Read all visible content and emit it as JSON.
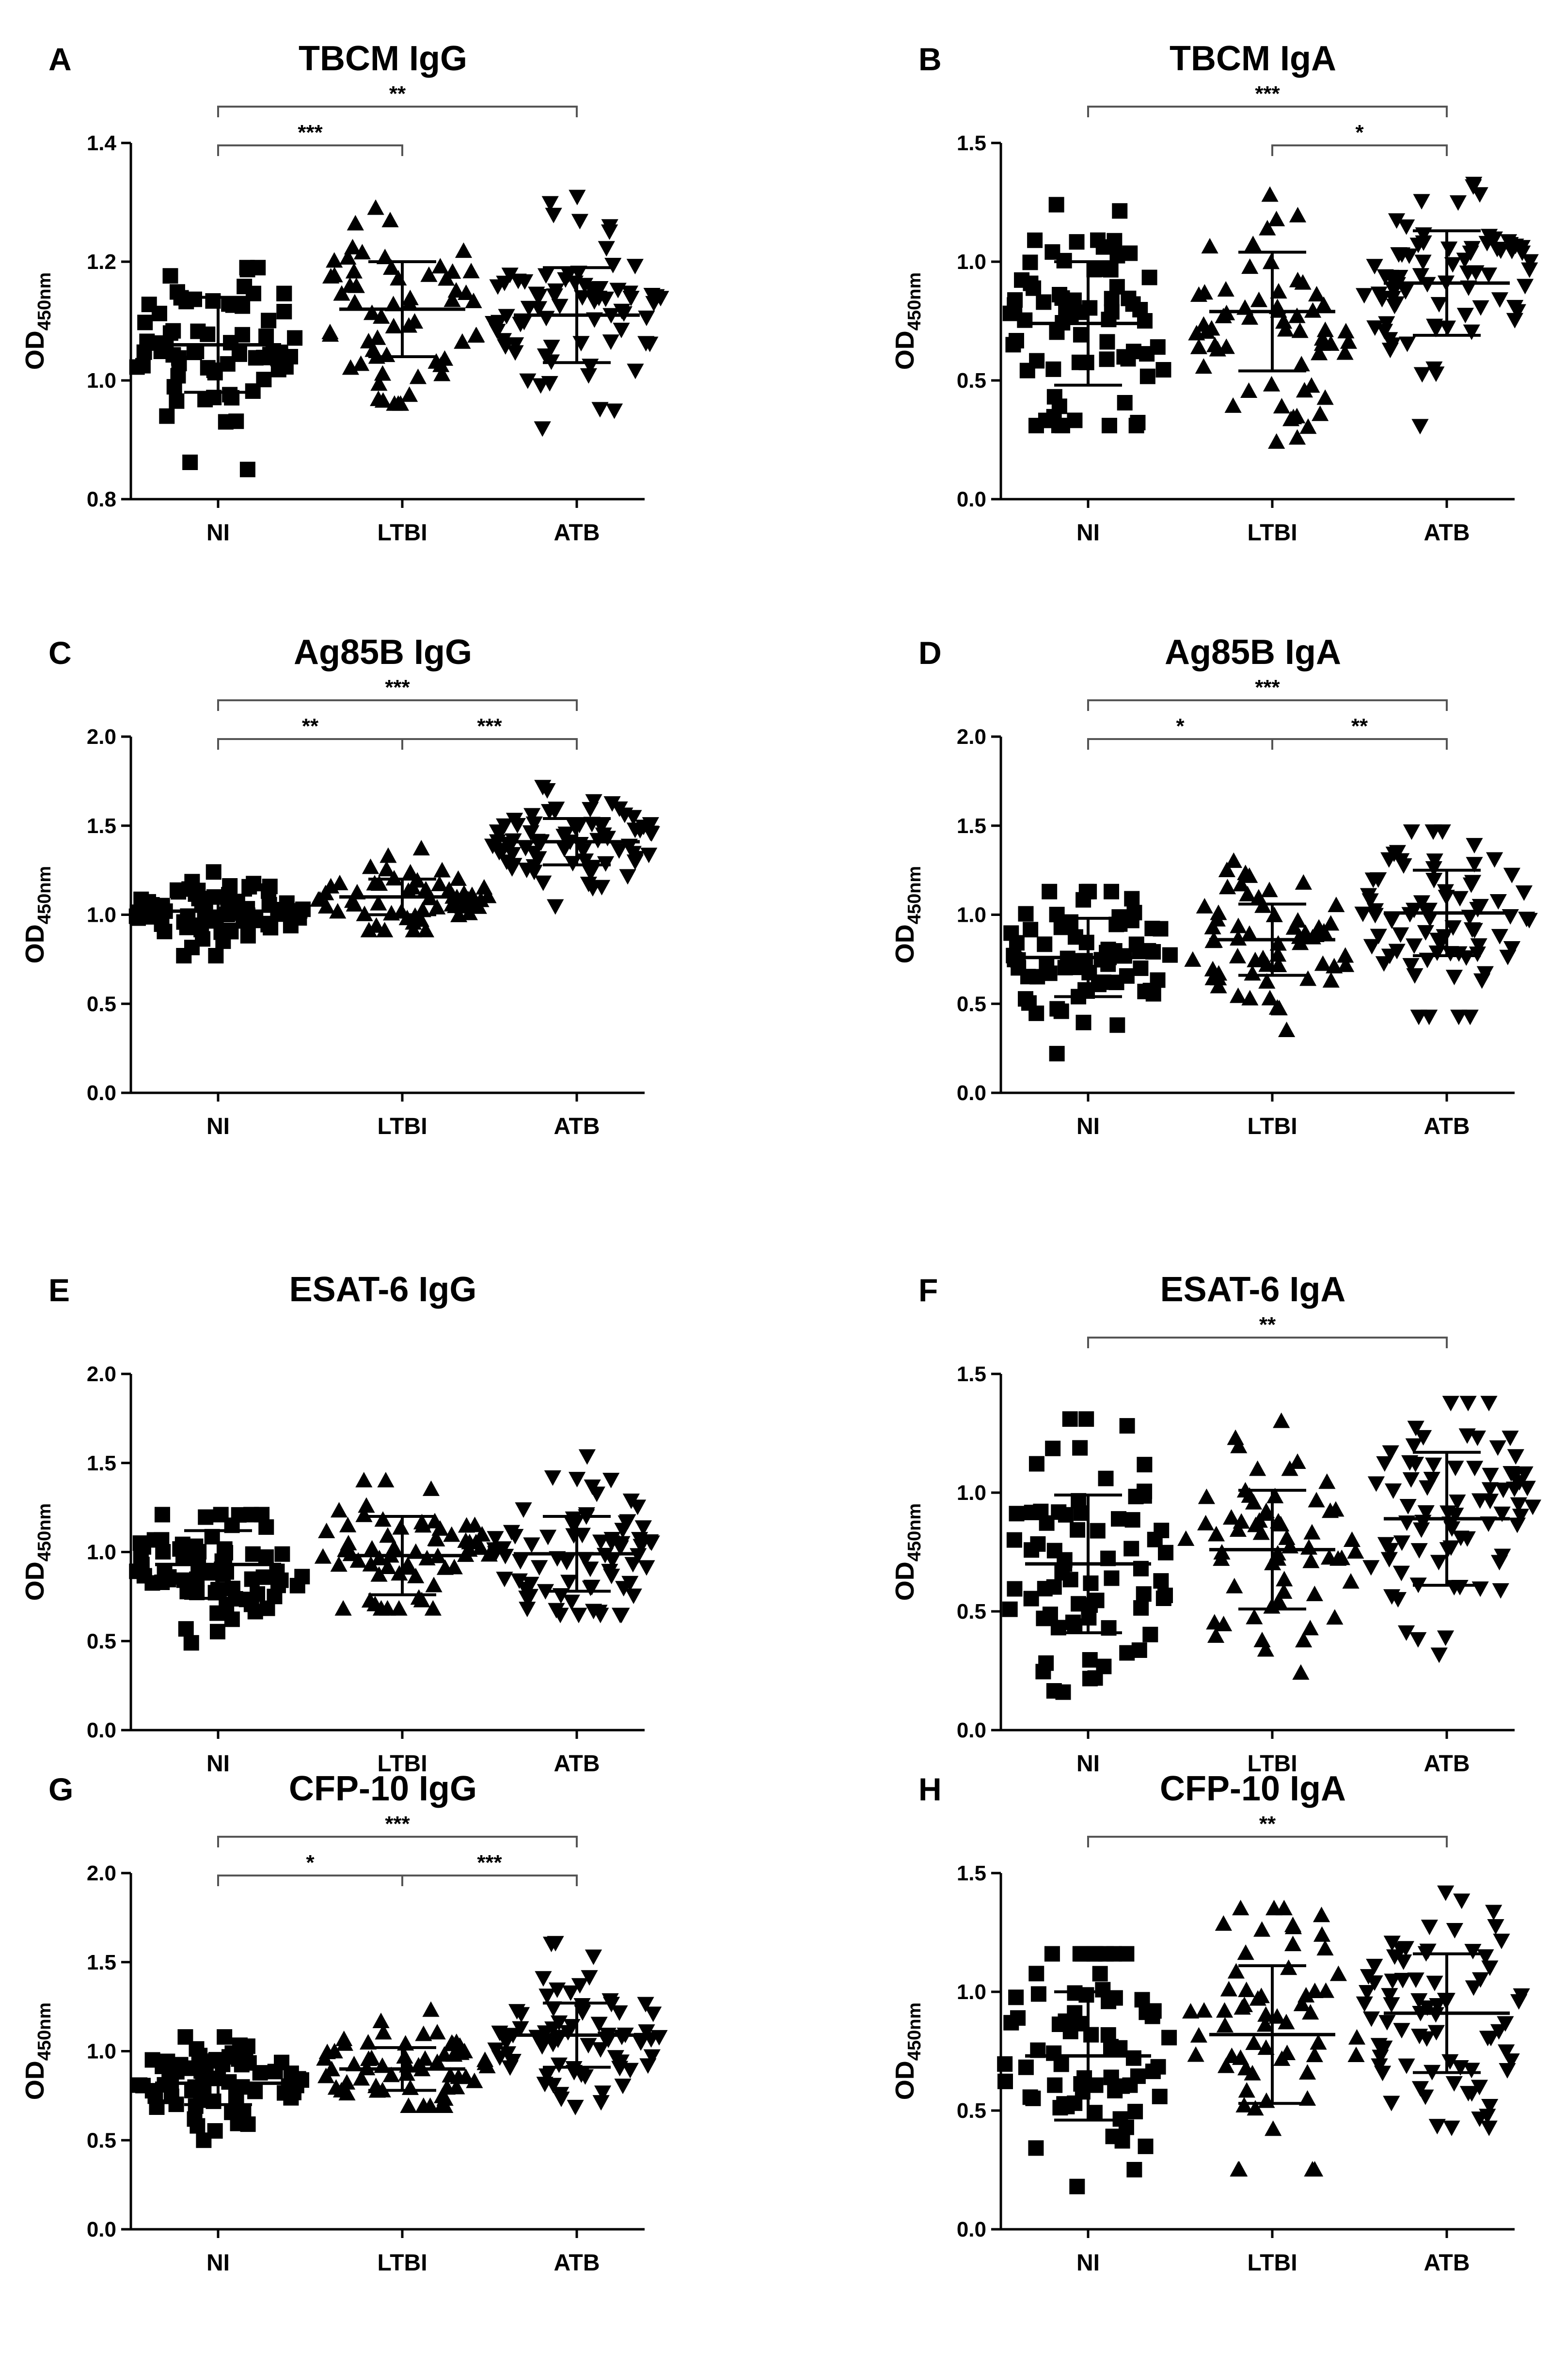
{
  "figure": {
    "groups": [
      "NI",
      "LTBI",
      "ATB"
    ],
    "markers": {
      "NI": "square",
      "LTBI": "triangle-up",
      "ATB": "triangle-down"
    },
    "colors": {
      "points": "#000000",
      "axis": "#000000",
      "brackets": "#555555",
      "background": "#ffffff"
    }
  },
  "chart_data": [
    {
      "type": "scatter",
      "panel": "A",
      "title": "TBCM IgG",
      "ylabel": "OD",
      "ylabel_sub": "450nm",
      "ylim": [
        0.8,
        1.4
      ],
      "yticks": [
        "0.8",
        "1.0",
        "1.2",
        "1.4"
      ],
      "categories": [
        "NI",
        "LTBI",
        "ATB"
      ],
      "series": [
        {
          "name": "NI",
          "n": 70,
          "mean": 1.06,
          "sd": 0.08,
          "min": 0.85,
          "max": 1.19
        },
        {
          "name": "LTBI",
          "n": 60,
          "mean": 1.12,
          "sd": 0.08,
          "min": 0.96,
          "max": 1.29
        },
        {
          "name": "ATB",
          "n": 75,
          "mean": 1.11,
          "sd": 0.08,
          "min": 0.92,
          "max": 1.31
        }
      ],
      "significance": [
        {
          "from": "NI",
          "to": "LTBI",
          "label": "***"
        },
        {
          "from": "NI",
          "to": "ATB",
          "label": "**"
        }
      ]
    },
    {
      "type": "scatter",
      "panel": "B",
      "title": "TBCM IgA",
      "ylabel": "OD",
      "ylabel_sub": "450nm",
      "ylim": [
        0.0,
        1.5
      ],
      "yticks": [
        "0.0",
        "0.5",
        "1.0",
        "1.5"
      ],
      "categories": [
        "NI",
        "LTBI",
        "ATB"
      ],
      "series": [
        {
          "name": "NI",
          "n": 70,
          "mean": 0.74,
          "sd": 0.26,
          "min": 0.31,
          "max": 1.24
        },
        {
          "name": "LTBI",
          "n": 60,
          "mean": 0.79,
          "sd": 0.25,
          "min": 0.24,
          "max": 1.28
        },
        {
          "name": "ATB",
          "n": 75,
          "mean": 0.91,
          "sd": 0.22,
          "min": 0.31,
          "max": 1.33
        }
      ],
      "significance": [
        {
          "from": "LTBI",
          "to": "ATB",
          "label": "*"
        },
        {
          "from": "NI",
          "to": "ATB",
          "label": "***"
        }
      ]
    },
    {
      "type": "scatter",
      "panel": "C",
      "title": "Ag85B IgG",
      "ylabel": "OD",
      "ylabel_sub": "450nm",
      "ylim": [
        0.0,
        2.0
      ],
      "yticks": [
        "0.0",
        "0.5",
        "1.0",
        "1.5",
        "2.0"
      ],
      "categories": [
        "NI",
        "LTBI",
        "ATB"
      ],
      "series": [
        {
          "name": "NI",
          "n": 70,
          "mean": 1.02,
          "sd": 0.09,
          "min": 0.77,
          "max": 1.24
        },
        {
          "name": "LTBI",
          "n": 60,
          "mean": 1.1,
          "sd": 0.1,
          "min": 0.91,
          "max": 1.37
        },
        {
          "name": "ATB",
          "n": 75,
          "mean": 1.41,
          "sd": 0.13,
          "min": 1.05,
          "max": 1.72
        }
      ],
      "significance": [
        {
          "from": "NI",
          "to": "LTBI",
          "label": "**"
        },
        {
          "from": "LTBI",
          "to": "ATB",
          "label": "***"
        },
        {
          "from": "NI",
          "to": "ATB",
          "label": "***"
        }
      ]
    },
    {
      "type": "scatter",
      "panel": "D",
      "title": "Ag85B IgA",
      "ylabel": "OD",
      "ylabel_sub": "450nm",
      "ylim": [
        0.0,
        2.0
      ],
      "yticks": [
        "0.0",
        "0.5",
        "1.0",
        "1.5",
        "2.0"
      ],
      "categories": [
        "NI",
        "LTBI",
        "ATB"
      ],
      "series": [
        {
          "name": "NI",
          "n": 70,
          "mean": 0.76,
          "sd": 0.22,
          "min": 0.22,
          "max": 1.13
        },
        {
          "name": "LTBI",
          "n": 60,
          "mean": 0.86,
          "sd": 0.2,
          "min": 0.35,
          "max": 1.3
        },
        {
          "name": "ATB",
          "n": 75,
          "mean": 1.01,
          "sd": 0.24,
          "min": 0.43,
          "max": 1.47
        }
      ],
      "significance": [
        {
          "from": "NI",
          "to": "LTBI",
          "label": "*"
        },
        {
          "from": "LTBI",
          "to": "ATB",
          "label": "**"
        },
        {
          "from": "NI",
          "to": "ATB",
          "label": "***"
        }
      ]
    },
    {
      "type": "scatter",
      "panel": "E",
      "title": "ESAT-6 IgG",
      "ylabel": "OD",
      "ylabel_sub": "450nm",
      "ylim": [
        0.0,
        2.0
      ],
      "yticks": [
        "0.0",
        "0.5",
        "1.0",
        "1.5",
        "2.0"
      ],
      "categories": [
        "NI",
        "LTBI",
        "ATB"
      ],
      "series": [
        {
          "name": "NI",
          "n": 70,
          "mean": 0.93,
          "sd": 0.19,
          "min": 0.49,
          "max": 1.21
        },
        {
          "name": "LTBI",
          "n": 60,
          "mean": 0.98,
          "sd": 0.22,
          "min": 0.68,
          "max": 1.4
        },
        {
          "name": "ATB",
          "n": 75,
          "mean": 0.99,
          "sd": 0.21,
          "min": 0.65,
          "max": 1.54
        }
      ],
      "significance": []
    },
    {
      "type": "scatter",
      "panel": "F",
      "title": "ESAT-6 IgA",
      "ylabel": "OD",
      "ylabel_sub": "450nm",
      "ylim": [
        0.0,
        1.5
      ],
      "yticks": [
        "0.0",
        "0.5",
        "1.0",
        "1.5"
      ],
      "categories": [
        "NI",
        "LTBI",
        "ATB"
      ],
      "series": [
        {
          "name": "NI",
          "n": 70,
          "mean": 0.7,
          "sd": 0.29,
          "min": 0.16,
          "max": 1.31
        },
        {
          "name": "LTBI",
          "n": 60,
          "mean": 0.76,
          "sd": 0.25,
          "min": 0.24,
          "max": 1.3
        },
        {
          "name": "ATB",
          "n": 75,
          "mean": 0.89,
          "sd": 0.28,
          "min": 0.32,
          "max": 1.38
        }
      ],
      "significance": [
        {
          "from": "NI",
          "to": "ATB",
          "label": "**"
        }
      ]
    },
    {
      "type": "scatter",
      "panel": "G",
      "title": "CFP-10 IgG",
      "ylabel": "OD",
      "ylabel_sub": "450nm",
      "ylim": [
        0.0,
        2.0
      ],
      "yticks": [
        "0.0",
        "0.5",
        "1.0",
        "1.5",
        "2.0"
      ],
      "categories": [
        "NI",
        "LTBI",
        "ATB"
      ],
      "series": [
        {
          "name": "NI",
          "n": 70,
          "mean": 0.82,
          "sd": 0.12,
          "min": 0.5,
          "max": 1.08
        },
        {
          "name": "LTBI",
          "n": 60,
          "mean": 0.9,
          "sd": 0.12,
          "min": 0.69,
          "max": 1.23
        },
        {
          "name": "ATB",
          "n": 75,
          "mean": 1.09,
          "sd": 0.18,
          "min": 0.69,
          "max": 1.61
        }
      ],
      "significance": [
        {
          "from": "NI",
          "to": "LTBI",
          "label": "*"
        },
        {
          "from": "LTBI",
          "to": "ATB",
          "label": "***"
        },
        {
          "from": "NI",
          "to": "ATB",
          "label": "***"
        }
      ]
    },
    {
      "type": "scatter",
      "panel": "H",
      "title": "CFP-10 IgA",
      "ylabel": "OD",
      "ylabel_sub": "450nm",
      "ylim": [
        0.0,
        1.5
      ],
      "yticks": [
        "0.0",
        "0.5",
        "1.0",
        "1.5"
      ],
      "categories": [
        "NI",
        "LTBI",
        "ATB"
      ],
      "series": [
        {
          "name": "NI",
          "n": 70,
          "mean": 0.73,
          "sd": 0.27,
          "min": 0.18,
          "max": 1.16
        },
        {
          "name": "LTBI",
          "n": 60,
          "mean": 0.82,
          "sd": 0.29,
          "min": 0.25,
          "max": 1.35
        },
        {
          "name": "ATB",
          "n": 75,
          "mean": 0.91,
          "sd": 0.25,
          "min": 0.43,
          "max": 1.42
        }
      ],
      "significance": [
        {
          "from": "NI",
          "to": "ATB",
          "label": "**"
        }
      ]
    }
  ]
}
